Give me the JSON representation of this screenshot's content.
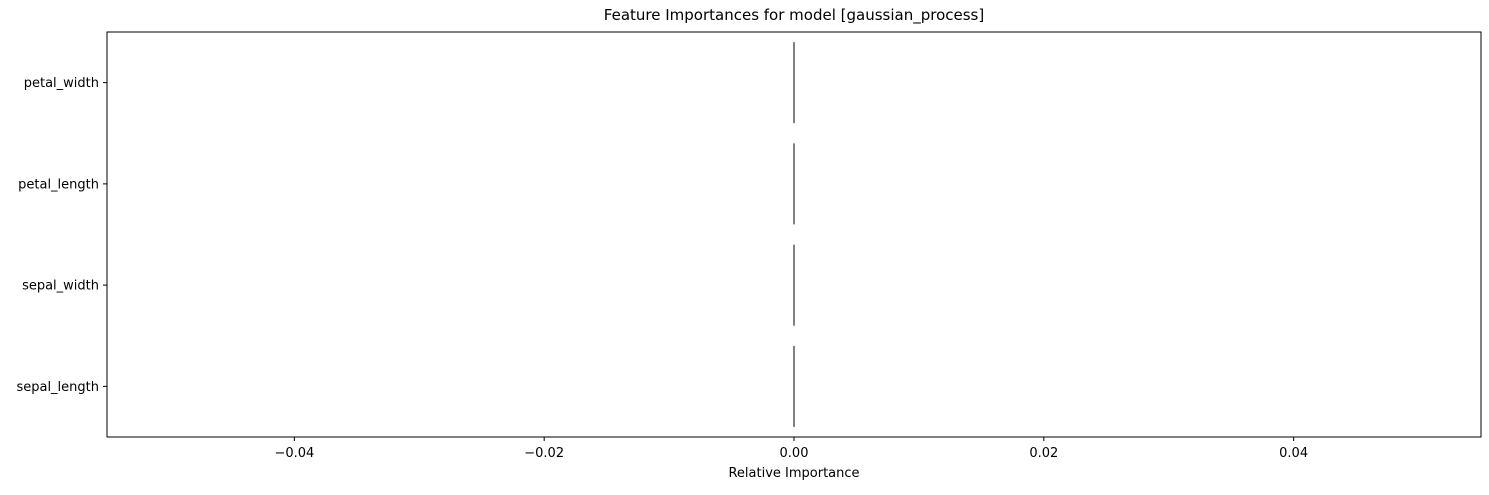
{
  "chart_data": {
    "type": "bar",
    "orientation": "horizontal",
    "title": "Feature Importances for model [gaussian_process]",
    "xlabel": "Relative Importance",
    "ylabel": "",
    "categories": [
      "sepal_length",
      "sepal_width",
      "petal_length",
      "petal_width"
    ],
    "values": [
      0.0,
      0.0,
      0.0,
      0.0
    ],
    "xlim": [
      -0.055,
      0.055
    ],
    "xticks": [
      -0.04,
      -0.02,
      0.0,
      0.02,
      0.04
    ],
    "xtick_labels": [
      "−0.04",
      "−0.02",
      "0.00",
      "0.02",
      "0.04"
    ],
    "grid": false,
    "legend": "none",
    "bar_color": "#000000"
  }
}
